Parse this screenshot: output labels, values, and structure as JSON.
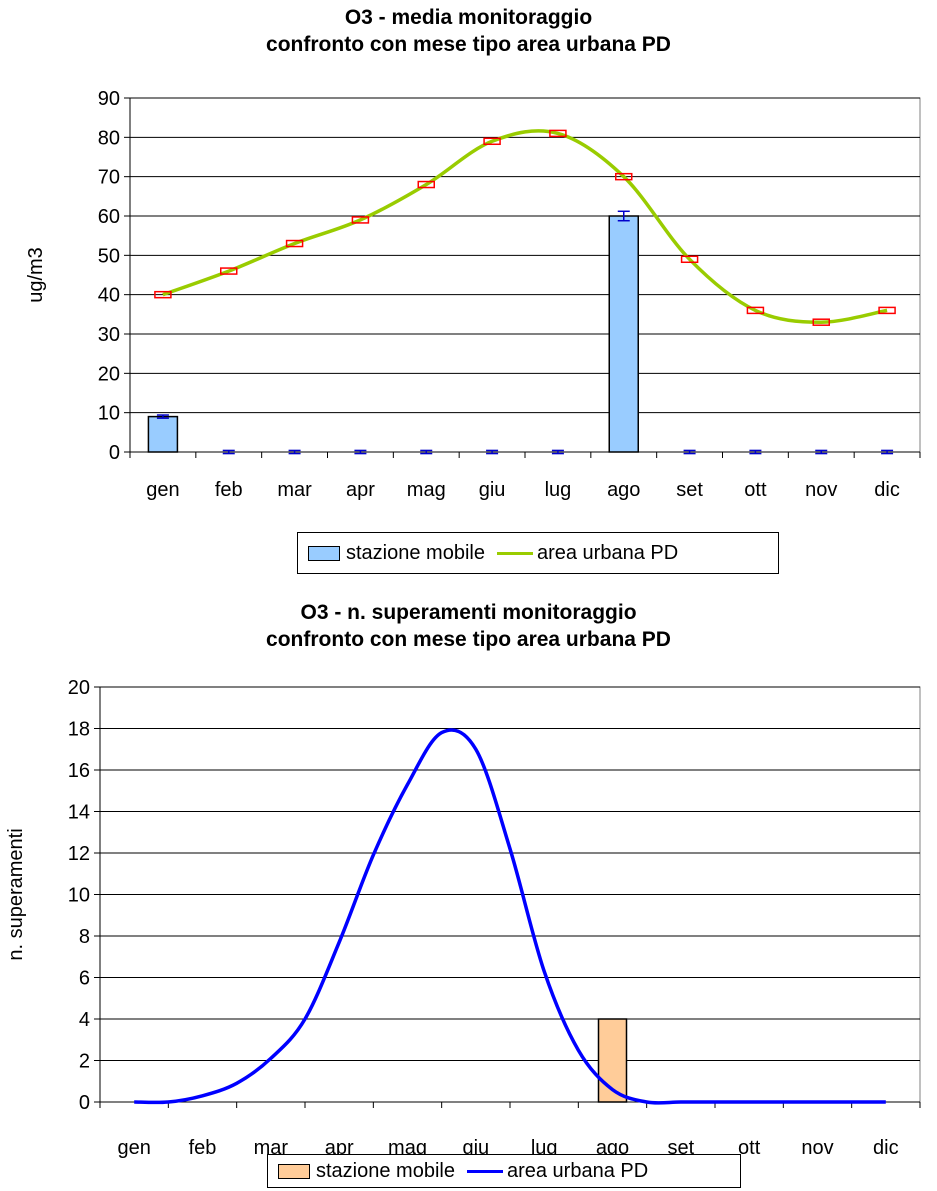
{
  "charts": [
    {
      "title_line1": "O3 - media monitoraggio",
      "title_line2": "confronto con mese tipo area urbana PD",
      "legend": {
        "bar_label": "stazione mobile",
        "line_label": "area urbana PD"
      }
    },
    {
      "title_line1": "O3 - n. superamenti monitoraggio",
      "title_line2": "confronto con mese tipo area urbana PD",
      "legend": {
        "bar_label": "stazione mobile",
        "line_label": "area urbana PD"
      }
    }
  ],
  "chart_data": [
    {
      "type": "bar",
      "title": "O3 - media monitoraggio confronto con mese tipo area urbana PD",
      "ylabel": "ug/m3",
      "xlabel": "",
      "categories": [
        "gen",
        "feb",
        "mar",
        "apr",
        "mag",
        "giu",
        "lug",
        "ago",
        "set",
        "ott",
        "nov",
        "dic"
      ],
      "ylim": [
        0,
        90
      ],
      "yticks": [
        0,
        10,
        20,
        30,
        40,
        50,
        60,
        70,
        80,
        90
      ],
      "grid": true,
      "legend_position": "bottom",
      "series": [
        {
          "name": "stazione mobile",
          "kind": "bar",
          "color": "#99ccff",
          "values": [
            9,
            0,
            0,
            0,
            0,
            0,
            0,
            60,
            0,
            0,
            0,
            0
          ],
          "error_color": "#0000cc"
        },
        {
          "name": "area urbana PD",
          "kind": "smooth-line",
          "color": "#99cc00",
          "values": [
            40,
            46,
            53,
            59,
            68,
            79,
            81,
            70,
            49,
            36,
            33,
            36
          ],
          "error_color": "#ff0000"
        }
      ]
    },
    {
      "type": "bar",
      "title": "O3 - n. superamenti monitoraggio confronto con mese tipo area urbana PD",
      "ylabel": "n. superamenti",
      "xlabel": "",
      "categories": [
        "gen",
        "feb",
        "mar",
        "apr",
        "mag",
        "giu",
        "lug",
        "ago",
        "set",
        "ott",
        "nov",
        "dic"
      ],
      "ylim": [
        0,
        20
      ],
      "yticks": [
        0,
        2,
        4,
        6,
        8,
        10,
        12,
        14,
        16,
        18,
        20
      ],
      "grid": true,
      "legend_position": "bottom",
      "series": [
        {
          "name": "stazione mobile",
          "kind": "bar",
          "color": "#ffcc99",
          "values": [
            0,
            0,
            0,
            0,
            0,
            0,
            0,
            4,
            0,
            0,
            0,
            0
          ]
        },
        {
          "name": "area urbana PD",
          "kind": "smooth-line",
          "color": "#0000ff",
          "x": [
            0,
            0.5,
            1,
            1.5,
            2,
            2.5,
            3,
            3.5,
            4,
            4.5,
            5,
            5.5,
            6,
            6.5,
            7,
            7.5,
            8,
            8.5,
            9,
            9.5,
            10,
            10.5,
            11
          ],
          "values": [
            0,
            0,
            0.3,
            0.9,
            2.1,
            4.0,
            7.7,
            11.9,
            15.3,
            17.8,
            17.0,
            12.2,
            6.3,
            2.5,
            0.6,
            0,
            0,
            0,
            0,
            0,
            0,
            0,
            0
          ]
        }
      ]
    }
  ]
}
